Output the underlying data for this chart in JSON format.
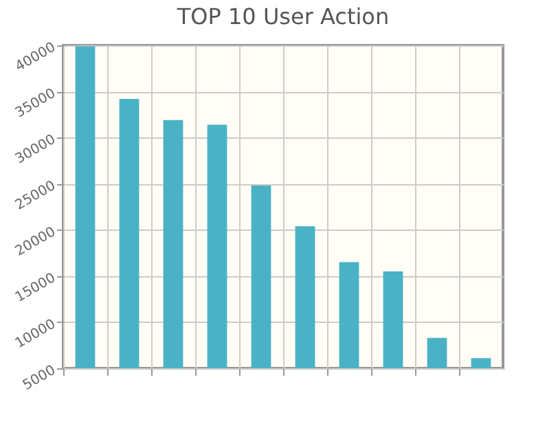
{
  "chart_data": {
    "type": "bar",
    "title": "TOP 10 User Action",
    "categories": [
      null,
      null,
      null,
      null,
      null,
      null,
      null,
      null,
      null,
      null
    ],
    "values": [
      39900,
      34200,
      31900,
      31400,
      24800,
      20400,
      16500,
      15500,
      8300,
      6100
    ],
    "color": "#4bb2c5",
    "ylim": [
      5000,
      40000
    ],
    "yticks": [
      5000,
      10000,
      15000,
      20000,
      25000,
      30000,
      35000,
      40000
    ],
    "grid": true
  }
}
